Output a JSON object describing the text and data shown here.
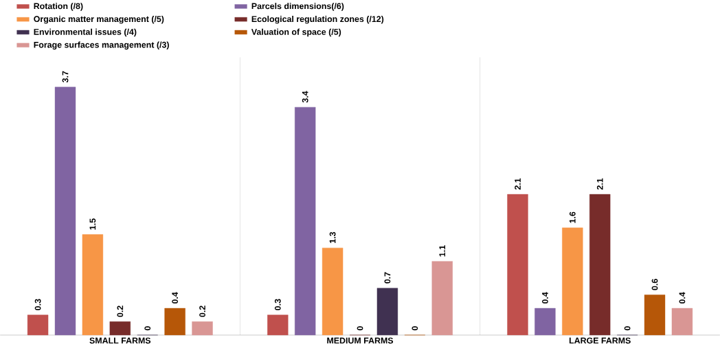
{
  "chart_data": {
    "type": "bar",
    "categories": [
      "SMALL FARMS",
      "MEDIUM FARMS",
      "LARGE FARMS"
    ],
    "series": [
      {
        "name": "Rotation (/8)",
        "color": "#c0504d",
        "values": [
          0.3,
          0.3,
          2.1
        ]
      },
      {
        "name": "Parcels dimensions(/6)",
        "color": "#8064a2",
        "values": [
          3.7,
          3.4,
          0.4
        ]
      },
      {
        "name": "Organic matter management (/5)",
        "color": "#f79646",
        "values": [
          1.5,
          1.3,
          1.6
        ]
      },
      {
        "name": "Ecological regulation zones (/12)",
        "color": "#772c2a",
        "values": [
          0.2,
          0,
          2.1
        ]
      },
      {
        "name": "Environmental issues  (/4)",
        "color": "#403151",
        "values": [
          0,
          0.7,
          0
        ]
      },
      {
        "name": "Valuation of space (/5)",
        "color": "#b65708",
        "values": [
          0.4,
          0,
          0.6
        ]
      },
      {
        "name": "Forage surfaces management (/3)",
        "color": "#d99694",
        "values": [
          0.2,
          1.1,
          0.4
        ]
      }
    ],
    "data_labels": true,
    "legend": "top"
  }
}
